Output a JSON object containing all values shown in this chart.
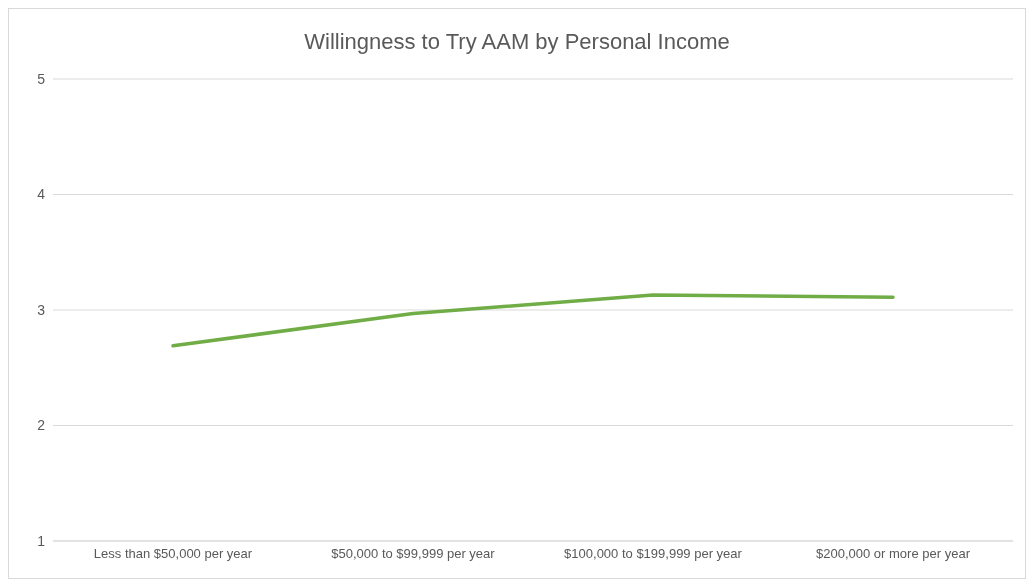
{
  "chart_data": {
    "type": "line",
    "title": "Willingness to Try AAM by Personal Income",
    "categories": [
      "Less than $50,000 per year",
      "$50,000 to $99,999 per year",
      "$100,000 to $199,999 per year",
      "$200,000 or more per year"
    ],
    "series": [
      {
        "color": "#70ad47",
        "values": [
          2.69,
          2.97,
          3.13,
          3.11
        ]
      }
    ],
    "ylim": [
      1,
      5
    ],
    "yticks": [
      1,
      2,
      3,
      4,
      5
    ],
    "grid": "y",
    "legend": false,
    "marker": "none",
    "line_style": "solid"
  }
}
